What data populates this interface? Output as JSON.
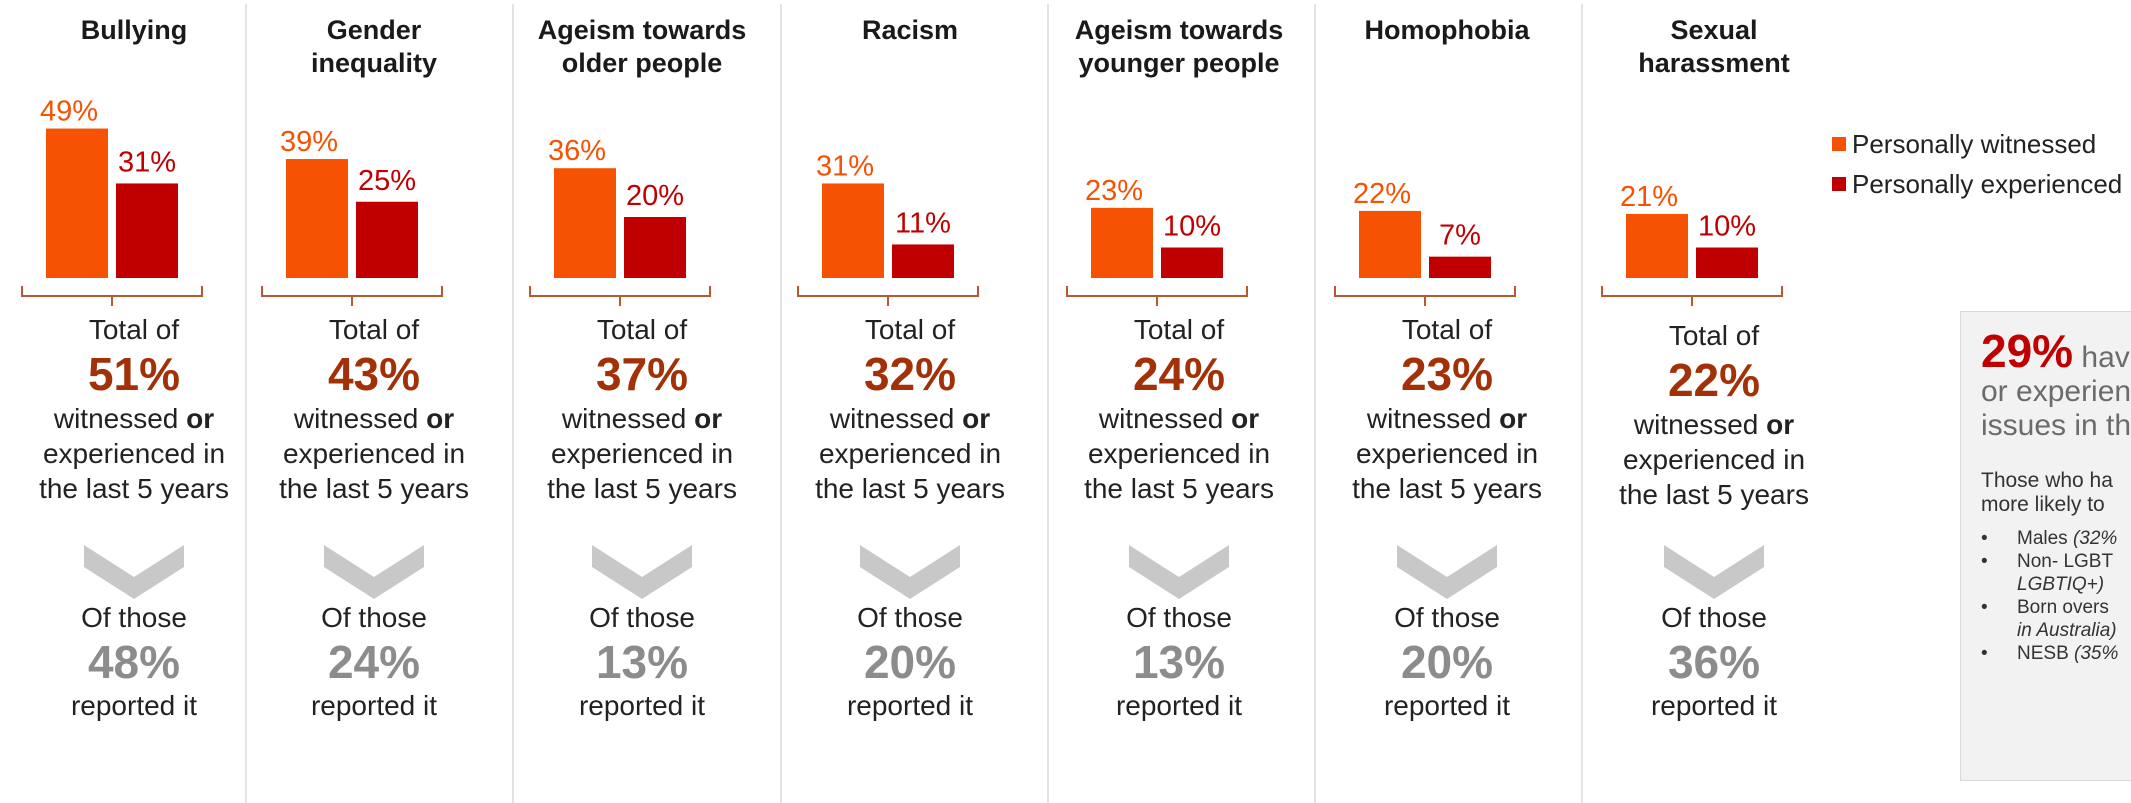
{
  "colors": {
    "witnessed": "#f55303",
    "experienced": "#c00000",
    "total_pct": "#a33107",
    "report_pct": "#8c8c8c",
    "chevron": "#c8c8c8",
    "divider": "#e3e3e3",
    "bracket": "#b85a30"
  },
  "legend": {
    "witnessed": "Personally witnessed",
    "experienced": "Personally experienced"
  },
  "chart_data": {
    "type": "bar",
    "unit": "%",
    "categories": [
      "Bullying",
      "Gender inequality",
      "Ageism towards older people",
      "Racism",
      "Ageism towards younger people",
      "Homophobia",
      "Sexual harassment"
    ],
    "series": [
      {
        "name": "Personally witnessed",
        "values": [
          49,
          39,
          36,
          31,
          23,
          22,
          21
        ]
      },
      {
        "name": "Personally experienced",
        "values": [
          31,
          25,
          20,
          11,
          10,
          7,
          10
        ]
      }
    ],
    "totals": [
      51,
      43,
      37,
      32,
      24,
      23,
      22
    ],
    "reported": [
      48,
      24,
      13,
      20,
      13,
      20,
      36
    ]
  },
  "panels": [
    {
      "title": "Bullying",
      "witnessed_label": "49%",
      "experienced_label": "31%",
      "total_label": "Total of",
      "total_pct": "51%",
      "desc_1": "witnessed ",
      "desc_or": "or",
      "desc_2": "experienced in",
      "desc_3": "the last 5 years",
      "report_label": "Of those",
      "report_pct": "48%",
      "report_sub": "reported it"
    },
    {
      "title": "Gender\ninequality",
      "witnessed_label": "39%",
      "experienced_label": "25%",
      "total_label": "Total of",
      "total_pct": "43%",
      "desc_1": "witnessed ",
      "desc_or": "or",
      "desc_2": "experienced in",
      "desc_3": "the last 5 years",
      "report_label": "Of those",
      "report_pct": "24%",
      "report_sub": "reported it"
    },
    {
      "title": "Ageism towards\nolder people",
      "witnessed_label": "36%",
      "experienced_label": "20%",
      "total_label": "Total of",
      "total_pct": "37%",
      "desc_1": "witnessed ",
      "desc_or": "or",
      "desc_2": "experienced in",
      "desc_3": "the last 5 years",
      "report_label": "Of those",
      "report_pct": "13%",
      "report_sub": "reported it"
    },
    {
      "title": "Racism",
      "witnessed_label": "31%",
      "experienced_label": "11%",
      "total_label": "Total of",
      "total_pct": "32%",
      "desc_1": "witnessed ",
      "desc_or": "or",
      "desc_2": "experienced in",
      "desc_3": "the last 5 years",
      "report_label": "Of those",
      "report_pct": "20%",
      "report_sub": "reported it"
    },
    {
      "title": "Ageism towards\nyounger people",
      "witnessed_label": "23%",
      "experienced_label": "10%",
      "total_label": "Total of",
      "total_pct": "24%",
      "desc_1": "witnessed ",
      "desc_or": "or",
      "desc_2": "experienced in",
      "desc_3": "the last 5 years",
      "report_label": "Of those",
      "report_pct": "13%",
      "report_sub": "reported it"
    },
    {
      "title": "Homophobia",
      "witnessed_label": "22%",
      "experienced_label": "7%",
      "total_label": "Total of",
      "total_pct": "23%",
      "desc_1": "witnessed ",
      "desc_or": "or",
      "desc_2": "experienced in",
      "desc_3": "the last 5 years",
      "report_label": "Of those",
      "report_pct": "20%",
      "report_sub": "reported it"
    },
    {
      "title": "Sexual\nharassment",
      "witnessed_label": "21%",
      "experienced_label": "10%",
      "total_label": "Total of",
      "total_pct": "22%",
      "desc_1": "witnessed ",
      "desc_or": "or",
      "desc_2": "experienced in",
      "desc_3": "the last 5 years",
      "report_label": "Of those",
      "report_pct": "36%",
      "report_sub": "reported it"
    }
  ],
  "summary": {
    "big_pct": "29%",
    "line_1": " hav",
    "line_2": "or experienc",
    "line_3": "issues in th",
    "sub_1": "Those who ha",
    "sub_2": "more likely to",
    "bullets": [
      {
        "text": "Males ",
        "note": "(32%"
      },
      {
        "text": "Non- LGBT",
        "note": "LGBTIQ+)"
      },
      {
        "text": "Born overs",
        "note": "in Australia)"
      },
      {
        "text": "NESB ",
        "note": "(35%"
      }
    ]
  }
}
